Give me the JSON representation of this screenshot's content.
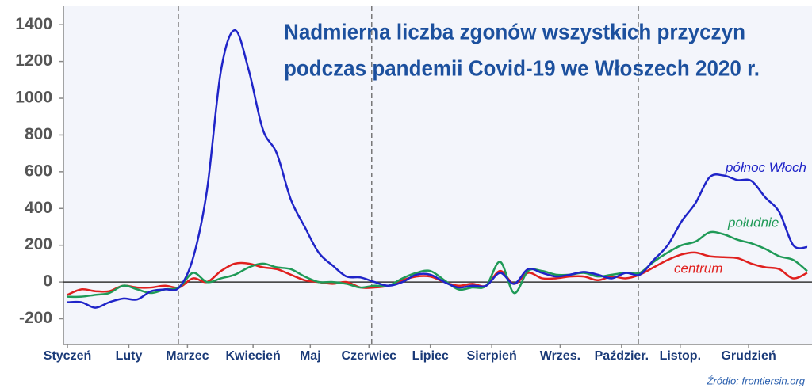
{
  "chart_data": {
    "type": "line",
    "title": [
      "Nadmierna liczba zgonów wszystkich przyczyn",
      "podczas pandemii Covid-19 we Włoszech 2020 r."
    ],
    "source": "Źródło: frontiersin.org",
    "x": [
      0,
      1,
      2,
      3,
      4,
      5,
      6,
      7,
      8,
      9,
      10,
      11,
      12,
      13,
      14,
      15,
      16,
      17,
      18,
      19,
      20,
      21,
      22,
      23,
      24,
      25,
      26,
      27,
      28,
      29,
      30,
      31,
      32,
      33,
      34,
      35,
      36,
      37,
      38,
      39,
      40,
      41,
      42,
      43,
      44,
      45,
      46,
      47,
      48,
      49,
      50,
      51,
      52,
      53
    ],
    "xlim": [
      0,
      53
    ],
    "xticks": [
      {
        "value": 0,
        "label": "Styczeń"
      },
      {
        "value": 4.4,
        "label": "Luty"
      },
      {
        "value": 8.6,
        "label": "Marzec"
      },
      {
        "value": 13.3,
        "label": "Kwiecień"
      },
      {
        "value": 17.4,
        "label": "Maj"
      },
      {
        "value": 21.6,
        "label": "Czerwiec"
      },
      {
        "value": 26,
        "label": "Lipiec"
      },
      {
        "value": 30.4,
        "label": "Sierpień"
      },
      {
        "value": 35.3,
        "label": "Wrzes."
      },
      {
        "value": 39.7,
        "label": "Paździer."
      },
      {
        "value": 43.9,
        "label": "Listop."
      },
      {
        "value": 48.8,
        "label": "Grudzień"
      }
    ],
    "vlines": [
      7.95,
      21.8,
      40.9
    ],
    "ylim": [
      -340,
      1500
    ],
    "yticks": [
      1400,
      1200,
      1000,
      800,
      600,
      400,
      200,
      0,
      -200
    ],
    "zero_line": true,
    "series": [
      {
        "name": "północ Włoch",
        "color": "#1f24c8",
        "values": [
          -110,
          -110,
          -140,
          -110,
          -90,
          -95,
          -50,
          -40,
          -30,
          130,
          500,
          1150,
          1370,
          1150,
          830,
          700,
          450,
          300,
          160,
          90,
          30,
          25,
          0,
          -20,
          0,
          40,
          40,
          0,
          -30,
          -20,
          -20,
          50,
          -10,
          70,
          50,
          30,
          40,
          55,
          40,
          20,
          50,
          40,
          120,
          200,
          330,
          430,
          570,
          580,
          555,
          550,
          460,
          380,
          200,
          190
        ]
      },
      {
        "name": "południe",
        "color": "#1f9a57",
        "values": [
          -80,
          -80,
          -70,
          -60,
          -20,
          -40,
          -60,
          -40,
          -30,
          50,
          0,
          20,
          40,
          80,
          100,
          80,
          70,
          30,
          0,
          0,
          -10,
          -30,
          -20,
          -20,
          20,
          50,
          60,
          10,
          -40,
          -30,
          -20,
          110,
          -60,
          60,
          60,
          40,
          40,
          50,
          30,
          40,
          50,
          50,
          110,
          160,
          200,
          220,
          270,
          260,
          230,
          210,
          180,
          140,
          120,
          60
        ]
      },
      {
        "name": "centrum",
        "color": "#e0201e",
        "values": [
          -70,
          -40,
          -50,
          -50,
          -20,
          -30,
          -30,
          -20,
          -30,
          20,
          0,
          60,
          100,
          100,
          80,
          70,
          40,
          10,
          0,
          -10,
          0,
          -30,
          -30,
          -20,
          10,
          30,
          30,
          0,
          -20,
          -10,
          -20,
          60,
          -10,
          50,
          20,
          20,
          30,
          30,
          10,
          30,
          20,
          40,
          80,
          120,
          150,
          160,
          140,
          135,
          130,
          100,
          80,
          70,
          20,
          50
        ]
      }
    ]
  }
}
